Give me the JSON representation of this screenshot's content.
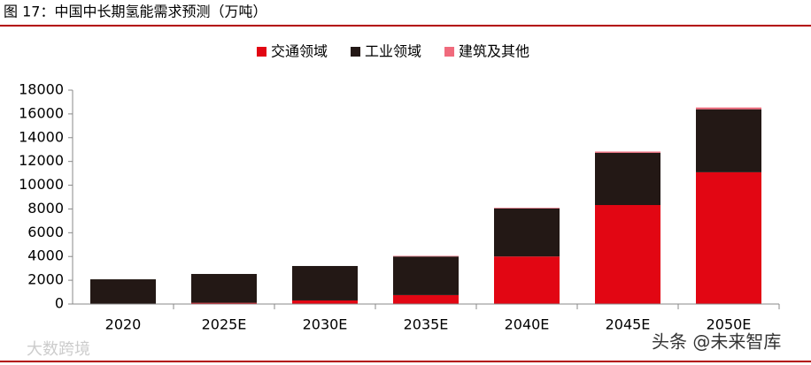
{
  "chart_data": {
    "type": "stacked-bar",
    "title": "图 17：中国中长期氢能需求预测（万吨）",
    "categories": [
      "2020",
      "2025E",
      "2030E",
      "2035E",
      "2040E",
      "2045E",
      "2050E"
    ],
    "series": [
      {
        "name": "交通领域",
        "color": "#e20613",
        "values": [
          0,
          100,
          300,
          750,
          4000,
          8330,
          11090
        ]
      },
      {
        "name": "工业领域",
        "color": "#231815",
        "values": [
          2080,
          2430,
          2900,
          3250,
          4050,
          4400,
          5300
        ]
      },
      {
        "name": "建筑及其他",
        "color": "#f06a7c",
        "values": [
          0,
          0,
          0,
          50,
          50,
          100,
          150
        ]
      }
    ],
    "ylim": [
      0,
      18000
    ],
    "yticks": [
      0,
      2000,
      4000,
      6000,
      8000,
      10000,
      12000,
      14000,
      16000,
      18000
    ],
    "watermarks": [
      "大数跨境",
      "头条 @未来智库"
    ]
  }
}
